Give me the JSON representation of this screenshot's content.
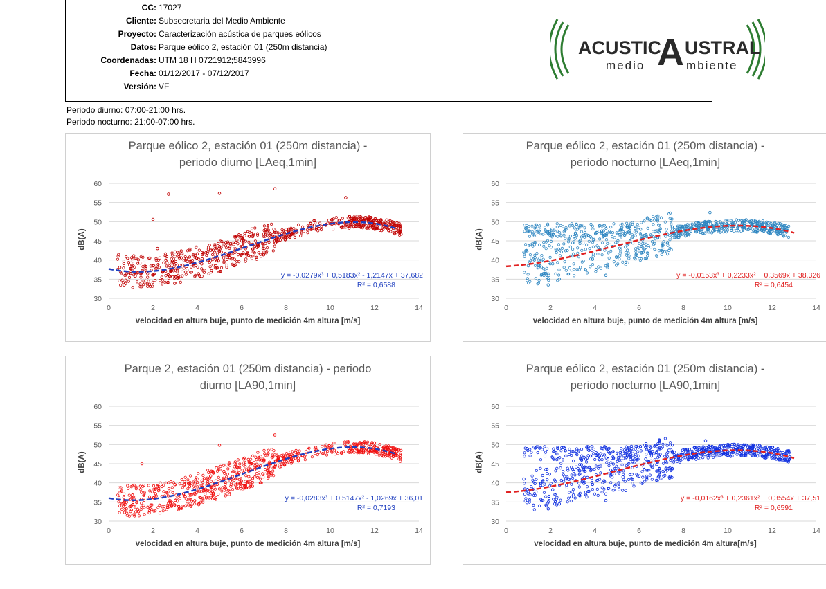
{
  "header": {
    "rows": [
      {
        "key": "CC:",
        "value": "17027"
      },
      {
        "key": "Cliente:",
        "value": "Subsecretaria del Medio Ambiente"
      },
      {
        "key": "Proyecto:",
        "value": "Caracterización acústica de parques eólicos"
      },
      {
        "key": "Datos:",
        "value": "Parque eólico 2, estación 01 (250m distancia)"
      },
      {
        "key": "Coordenadas:",
        "value": "UTM 18 H 0721912;5843996"
      },
      {
        "key": "Fecha:",
        "value": "01/12/2017 - 07/12/2017"
      },
      {
        "key": "Versión:",
        "value": "VF"
      }
    ],
    "logo": {
      "line1_a": "ACUSTIC",
      "line1_b": "A",
      "line1_c": "USTRAL",
      "line2_a": "medio",
      "line2_b": "mbiente",
      "color": "#2e7d32"
    }
  },
  "notes": [
    "Periodo diurno: 07:00-21:00 hrs.",
    "Periodo nocturno: 21:00-07:00 hrs."
  ],
  "chart_data": [
    {
      "type": "scatter",
      "title_lines": [
        "Parque eólico 2, estación 01 (250m distancia) -",
        "periodo  diurno [LAeq,1min]"
      ],
      "xlabel": "velocidad en  altura buje, punto de medición 4m altura [m/s]",
      "ylabel": "dB(A)",
      "xlim": [
        0,
        14
      ],
      "ylim": [
        30,
        60
      ],
      "xticks": [
        "0",
        "2",
        "4",
        "6",
        "8",
        "10",
        "12",
        "14"
      ],
      "yticks": [
        "30",
        "35",
        "40",
        "45",
        "50",
        "55",
        "60"
      ],
      "point_color": "#c00000",
      "trend_color": "#1f3fbf",
      "trend": {
        "a3": -0.0279,
        "a2": 0.5183,
        "a1": -1.2147,
        "a0": 37.682
      },
      "equation": "y = -0,0279x³ + 0,5183x² - 1,2147x + 37,682",
      "r2": "R² = 0,6588",
      "eq_color": "#1f3fbf",
      "points": [
        [
          0.5,
          38.1
        ],
        [
          0.8,
          36.4
        ],
        [
          1.0,
          39.2
        ],
        [
          1.2,
          35.8
        ],
        [
          1.5,
          41.0
        ],
        [
          1.7,
          36.9
        ],
        [
          2.0,
          38.5
        ],
        [
          2.2,
          43.0
        ],
        [
          2.4,
          35.5
        ],
        [
          2.6,
          39.8
        ],
        [
          2.8,
          37.2
        ],
        [
          3.0,
          42.1
        ],
        [
          3.2,
          38.6
        ],
        [
          3.5,
          40.4
        ],
        [
          3.7,
          36.8
        ],
        [
          4.0,
          41.6
        ],
        [
          4.2,
          39.0
        ],
        [
          4.5,
          42.8
        ],
        [
          4.7,
          40.2
        ],
        [
          5.0,
          43.5
        ],
        [
          5.2,
          41.1
        ],
        [
          5.5,
          44.2
        ],
        [
          5.7,
          42.0
        ],
        [
          6.0,
          45.0
        ],
        [
          6.2,
          43.3
        ],
        [
          6.5,
          46.1
        ],
        [
          6.7,
          44.4
        ],
        [
          7.0,
          46.8
        ],
        [
          7.2,
          45.2
        ],
        [
          7.5,
          47.5
        ],
        [
          7.8,
          46.4
        ],
        [
          8.0,
          48.0
        ],
        [
          8.5,
          47.3
        ],
        [
          9.0,
          49.0
        ],
        [
          9.5,
          48.2
        ],
        [
          10.0,
          49.5
        ],
        [
          10.5,
          48.6
        ],
        [
          11.0,
          49.8
        ],
        [
          11.5,
          48.9
        ],
        [
          12.0,
          49.4
        ],
        [
          12.5,
          48.5
        ],
        [
          13.0,
          49.0
        ],
        [
          2.7,
          57.2
        ],
        [
          5.0,
          57.4
        ],
        [
          7.5,
          58.6
        ],
        [
          10.7,
          56.3
        ],
        [
          2.0,
          50.6
        ]
      ]
    },
    {
      "type": "scatter",
      "title_lines": [
        "Parque eólico 2, estación 01 (250m distancia) -",
        "periodo  nocturno [LAeq,1min]"
      ],
      "xlabel": "velocidad en altura buje, punto de medición 4m altura [m/s]",
      "ylabel": "dB(A)",
      "xlim": [
        0,
        14
      ],
      "ylim": [
        30,
        60
      ],
      "xticks": [
        "0",
        "2",
        "4",
        "6",
        "8",
        "10",
        "12",
        "14"
      ],
      "yticks": [
        "30",
        "35",
        "40",
        "45",
        "50",
        "55",
        "60"
      ],
      "point_color": "#2e86c1",
      "trend_color": "#e02020",
      "trend": {
        "a3": -0.0153,
        "a2": 0.2233,
        "a1": 0.3569,
        "a0": 38.326
      },
      "equation": "y = -0,0153x³ + 0,2233x² + 0,3569x + 38,326",
      "r2": "R² = 0,6454",
      "eq_color": "#e02020",
      "points": [
        [
          0.8,
          42.0
        ],
        [
          1.0,
          38.5
        ],
        [
          1.3,
          40.6
        ],
        [
          1.6,
          36.2
        ],
        [
          1.9,
          33.5
        ],
        [
          2.1,
          39.0
        ],
        [
          2.4,
          35.0
        ],
        [
          2.7,
          48.0
        ],
        [
          3.0,
          44.5
        ],
        [
          3.3,
          37.5
        ],
        [
          3.6,
          46.8
        ],
        [
          3.9,
          40.2
        ],
        [
          4.2,
          47.5
        ],
        [
          4.5,
          36.0
        ],
        [
          4.8,
          43.5
        ],
        [
          5.1,
          47.2
        ],
        [
          5.4,
          38.8
        ],
        [
          5.7,
          46.0
        ],
        [
          6.0,
          42.4
        ],
        [
          6.3,
          46.6
        ],
        [
          6.6,
          44.8
        ],
        [
          6.9,
          47.3
        ],
        [
          7.2,
          46.2
        ],
        [
          7.5,
          48.6
        ],
        [
          7.8,
          47.4
        ],
        [
          8.1,
          49.0
        ],
        [
          8.4,
          48.2
        ],
        [
          8.7,
          49.6
        ],
        [
          9.0,
          48.8
        ],
        [
          9.5,
          49.2
        ],
        [
          10.0,
          48.5
        ],
        [
          10.5,
          48.9
        ],
        [
          11.0,
          48.3
        ],
        [
          11.5,
          48.6
        ],
        [
          12.0,
          48.1
        ],
        [
          12.5,
          48.4
        ],
        [
          9.2,
          52.4
        ],
        [
          7.0,
          51.0
        ]
      ]
    },
    {
      "type": "scatter",
      "title_lines": [
        "Parque 2, estación 01 (250m distancia) - periodo",
        "diurno [LA90,1min]"
      ],
      "xlabel": "velocidad en  altura buje, punto de medición 4m altura [m/s]",
      "ylabel": "dB(A)",
      "xlim": [
        0,
        14
      ],
      "ylim": [
        30,
        60
      ],
      "xticks": [
        "0",
        "2",
        "4",
        "6",
        "8",
        "10",
        "12",
        "14"
      ],
      "yticks": [
        "30",
        "35",
        "40",
        "45",
        "50",
        "55",
        "60"
      ],
      "point_color": "#f01010",
      "trend_color": "#1f3fbf",
      "trend": {
        "a3": -0.0283,
        "a2": 0.5147,
        "a1": -1.0269,
        "a0": 36.01
      },
      "equation": "y = -0,0283x³ + 0,5147x² - 1,0269x + 36,01",
      "r2": "R² = 0,7193",
      "eq_color": "#1f3fbf",
      "points": [
        [
          0.5,
          34.0
        ],
        [
          0.8,
          33.2
        ],
        [
          1.0,
          35.8
        ],
        [
          1.3,
          32.9
        ],
        [
          1.6,
          37.1
        ],
        [
          1.9,
          34.2
        ],
        [
          2.2,
          39.0
        ],
        [
          2.5,
          33.8
        ],
        [
          2.8,
          37.6
        ],
        [
          3.1,
          35.2
        ],
        [
          3.4,
          39.4
        ],
        [
          3.7,
          36.8
        ],
        [
          4.0,
          40.1
        ],
        [
          4.3,
          38.0
        ],
        [
          4.6,
          41.8
        ],
        [
          4.9,
          39.6
        ],
        [
          5.2,
          43.0
        ],
        [
          5.5,
          41.2
        ],
        [
          5.8,
          44.1
        ],
        [
          6.1,
          42.6
        ],
        [
          6.4,
          45.2
        ],
        [
          6.7,
          43.9
        ],
        [
          7.0,
          46.0
        ],
        [
          7.3,
          45.0
        ],
        [
          7.6,
          47.2
        ],
        [
          7.9,
          46.4
        ],
        [
          8.2,
          48.0
        ],
        [
          8.5,
          47.3
        ],
        [
          9.0,
          48.6
        ],
        [
          9.5,
          48.0
        ],
        [
          10.0,
          48.9
        ],
        [
          10.5,
          47.8
        ],
        [
          11.0,
          48.5
        ],
        [
          11.5,
          47.9
        ],
        [
          12.0,
          48.4
        ],
        [
          12.5,
          47.8
        ],
        [
          13.0,
          48.2
        ],
        [
          7.5,
          52.5
        ],
        [
          5.0,
          49.8
        ],
        [
          1.5,
          45.0
        ]
      ]
    },
    {
      "type": "scatter",
      "title_lines": [
        "Parque eólico 2, estación 01 (250m distancia) -",
        "periodo  nocturno [LA90,1min]"
      ],
      "xlabel": "velocidad en  altura buje, punto de medición 4m altura[m/s]",
      "ylabel": "dB(A)",
      "xlim": [
        0,
        14
      ],
      "ylim": [
        30,
        60
      ],
      "xticks": [
        "0",
        "2",
        "4",
        "6",
        "8",
        "10",
        "12",
        "14"
      ],
      "yticks": [
        "30",
        "35",
        "40",
        "45",
        "50",
        "55",
        "60"
      ],
      "point_color": "#1030e0",
      "trend_color": "#e02020",
      "trend": {
        "a3": -0.0162,
        "a2": 0.2361,
        "a1": 0.3554,
        "a0": 37.51
      },
      "equation": "y = -0,0162x³ + 0,2361x² + 0,3554x + 37,51",
      "r2": "R² = 0,6591",
      "eq_color": "#e02020",
      "points": [
        [
          0.8,
          41.0
        ],
        [
          1.0,
          37.6
        ],
        [
          1.3,
          39.8
        ],
        [
          1.6,
          35.4
        ],
        [
          1.9,
          33.2
        ],
        [
          2.1,
          38.2
        ],
        [
          2.4,
          34.5
        ],
        [
          2.7,
          47.0
        ],
        [
          3.0,
          43.6
        ],
        [
          3.3,
          36.8
        ],
        [
          3.6,
          46.2
        ],
        [
          3.9,
          39.6
        ],
        [
          4.2,
          47.0
        ],
        [
          4.5,
          35.4
        ],
        [
          4.8,
          43.0
        ],
        [
          5.1,
          46.6
        ],
        [
          5.4,
          38.0
        ],
        [
          5.7,
          45.5
        ],
        [
          6.0,
          41.8
        ],
        [
          6.3,
          46.2
        ],
        [
          6.6,
          44.1
        ],
        [
          6.9,
          46.9
        ],
        [
          7.2,
          45.6
        ],
        [
          7.5,
          48.2
        ],
        [
          7.8,
          47.0
        ],
        [
          8.1,
          48.6
        ],
        [
          8.4,
          47.6
        ],
        [
          8.7,
          49.2
        ],
        [
          9.0,
          48.4
        ],
        [
          9.5,
          48.8
        ],
        [
          10.0,
          48.0
        ],
        [
          10.5,
          48.4
        ],
        [
          11.0,
          47.8
        ],
        [
          11.5,
          48.1
        ],
        [
          12.0,
          47.6
        ],
        [
          12.5,
          47.9
        ],
        [
          9.0,
          51.0
        ]
      ]
    }
  ]
}
